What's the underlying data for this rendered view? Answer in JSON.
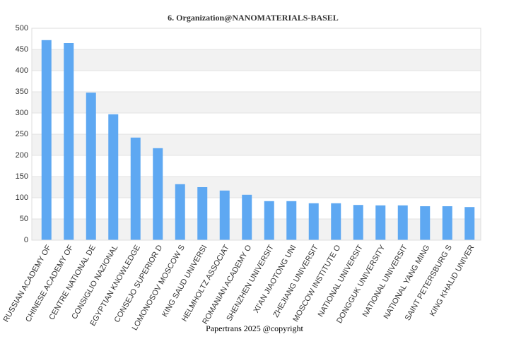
{
  "chart_data": {
    "type": "bar",
    "title": "6. Organization@NANOMATERIALS-BASEL",
    "footer": "Papertrans 2025 @copyright",
    "categories": [
      "RUSSIAN ACADEMY OF",
      "CHINESE ACADEMY OF",
      "CENTRE NATIONAL DE",
      "CONSIGLIO NAZIONAL",
      "EGYPTIAN KNOWLEDGE",
      "CONSEJO SUPERIOR D",
      "LOMONOSOV MOSCOW S",
      "KING SAUD UNIVERSI",
      "HELMHOLTZ ASSOCIAT",
      "ROMANIAN ACADEMY O",
      "SHENZHEN UNIVERSIT",
      "XI'AN JIAOTONG UNI",
      "ZHEJIANG UNIVERSIT",
      "MOSCOW INSTITUTE O",
      "NATIONAL UNIVERSIT",
      "DONGGUK UNIVERSITY",
      "NATIONAL UNIVERSIT",
      "NATIONAL YANG MING",
      "SAINT PETERSBURG S",
      "KING KHALID UNIVER"
    ],
    "values": [
      472,
      465,
      348,
      297,
      242,
      217,
      132,
      125,
      117,
      107,
      92,
      92,
      87,
      87,
      83,
      82,
      82,
      80,
      80,
      78
    ],
    "color": "#5ea8f2",
    "ylim": [
      0,
      500
    ],
    "yticks": [
      0,
      50,
      100,
      150,
      200,
      250,
      300,
      350,
      400,
      450,
      500
    ],
    "grid": true
  }
}
